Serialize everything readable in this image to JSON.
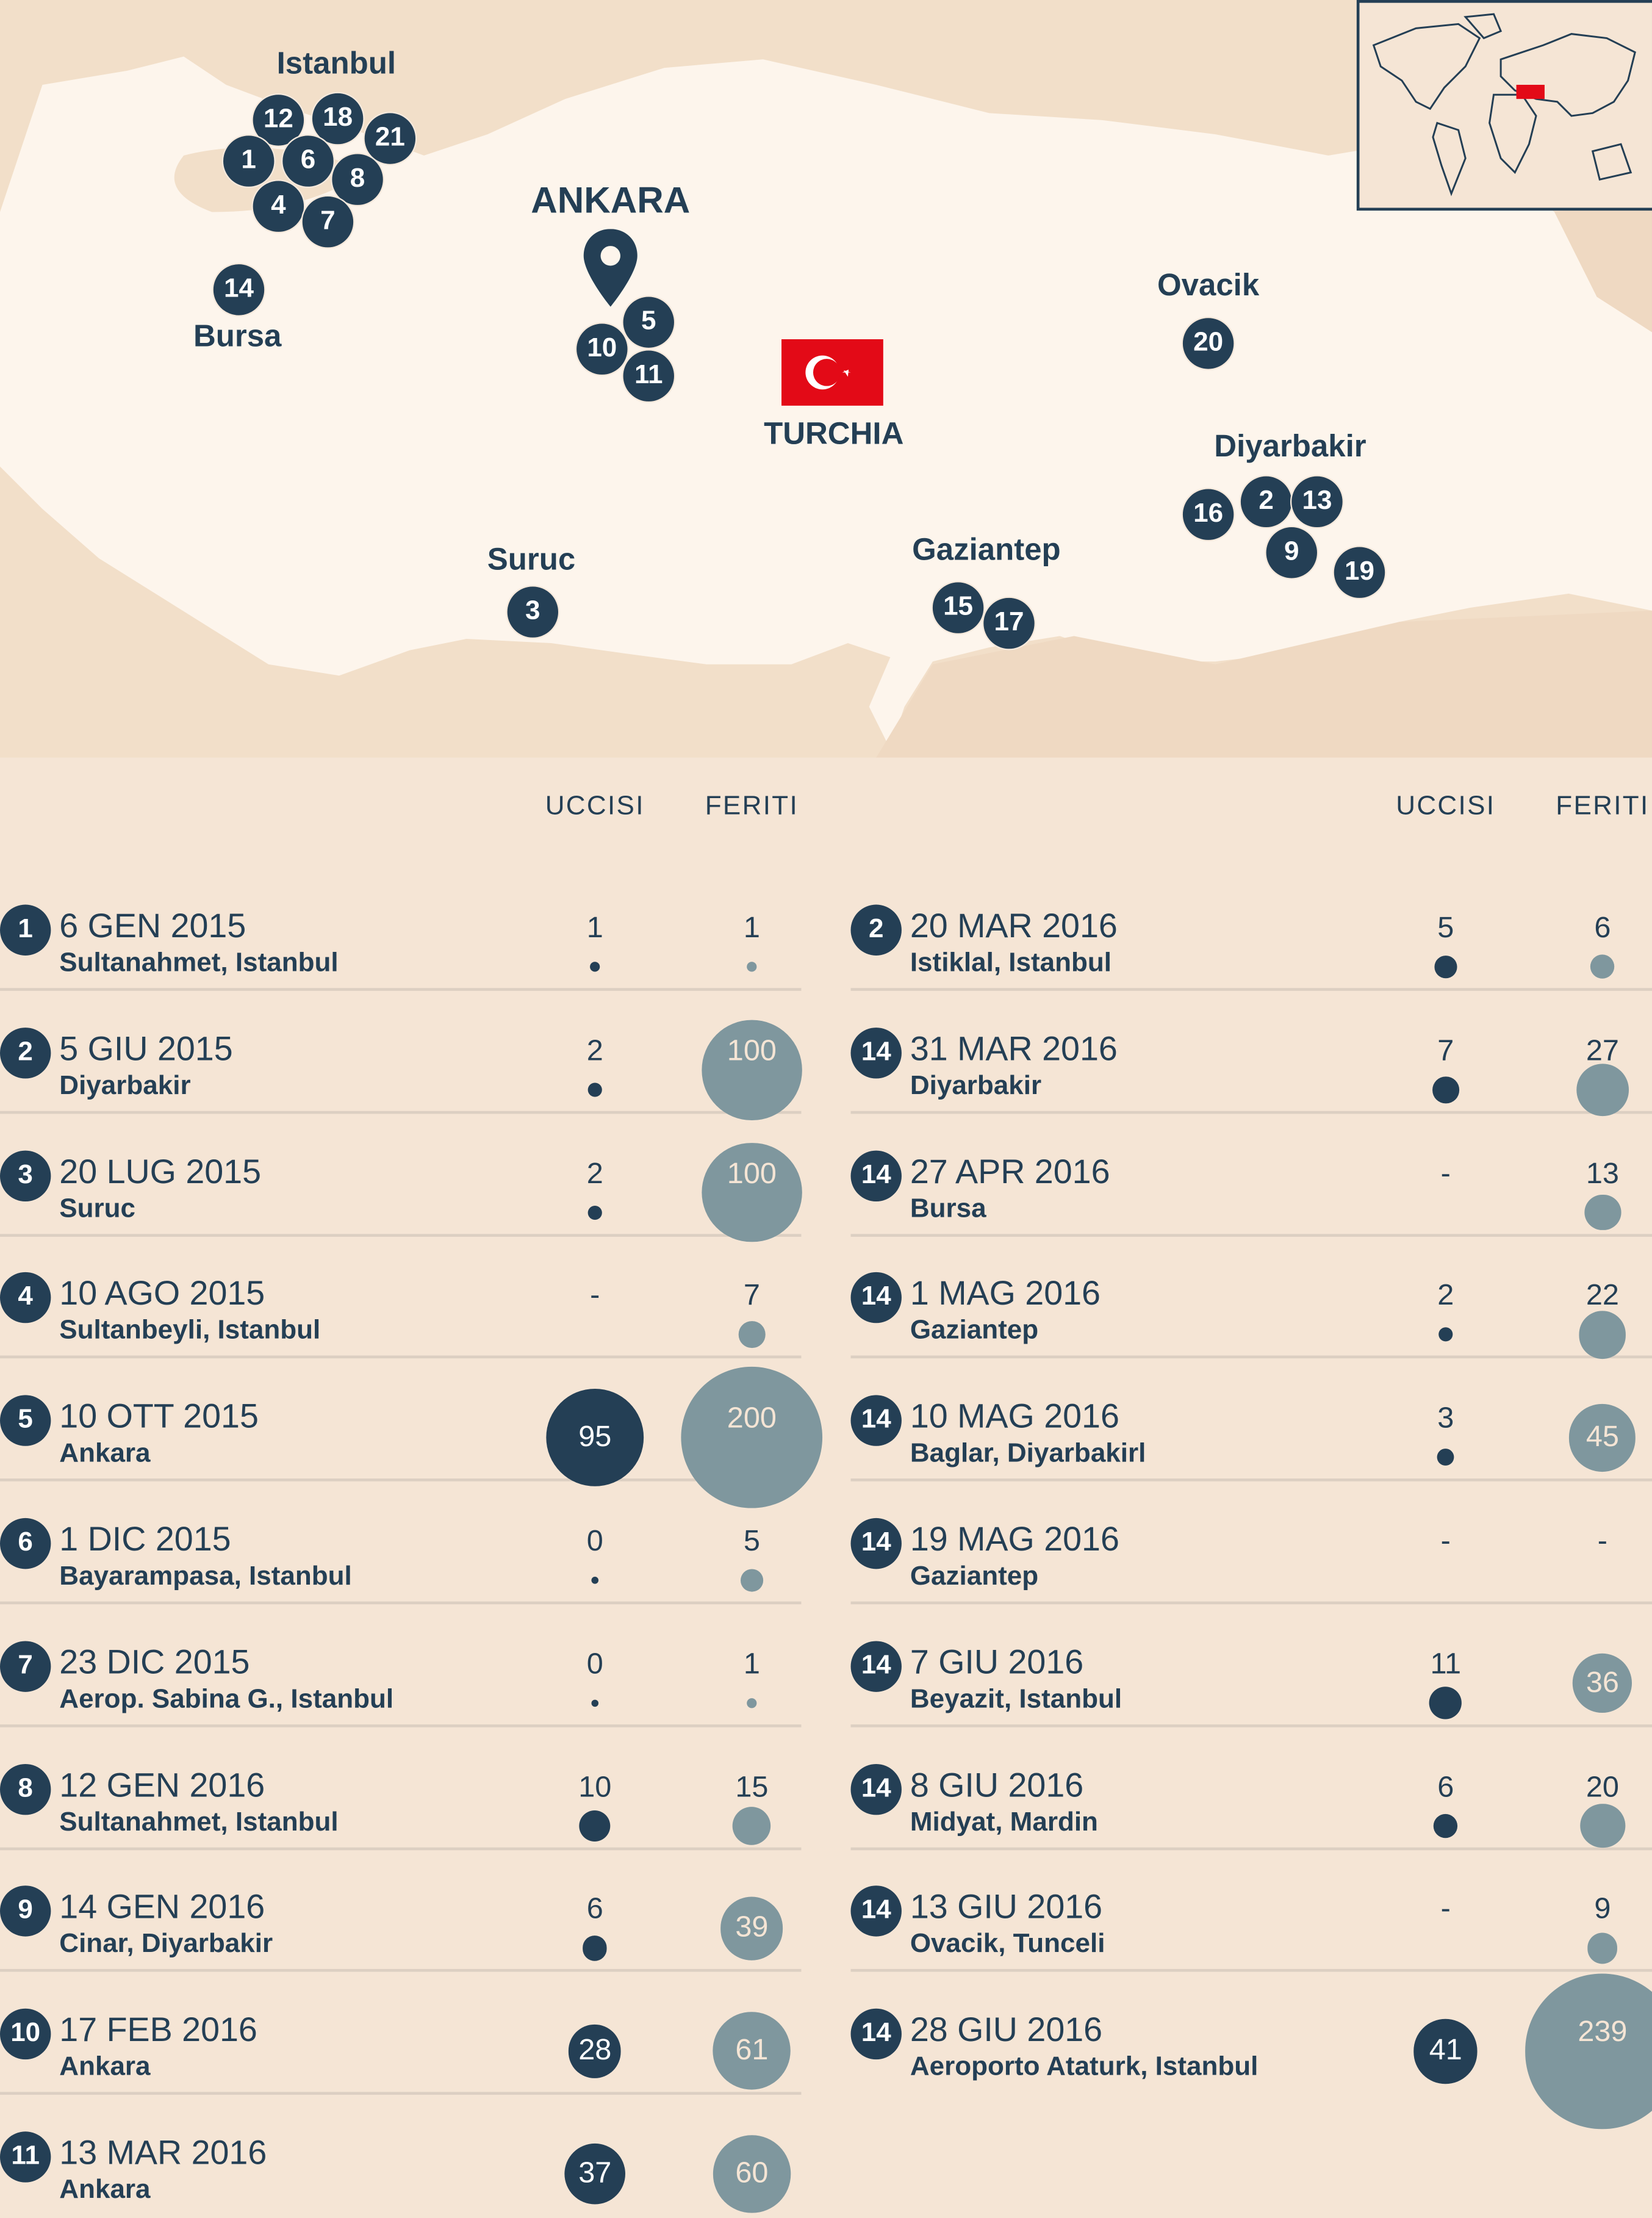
{
  "map": {
    "labels": {
      "istanbul": "Istanbul",
      "ankara": "ANKARA",
      "bursa": "Bursa",
      "ovacik": "Ovacik",
      "turchia": "TURCHIA",
      "diyarbakir": "Diyarbakir",
      "suruc": "Suruc",
      "gaziantep": "Gaziantep"
    },
    "markers": [
      "12",
      "18",
      "21",
      "1",
      "6",
      "8",
      "4",
      "7",
      "14",
      "5",
      "10",
      "11",
      "20",
      "16",
      "2",
      "13",
      "9",
      "19",
      "3",
      "15",
      "17"
    ],
    "colors": {
      "sea": "#f2dfc9",
      "turkey": "#fdf5ec",
      "marker": "#243f55",
      "flag": "#e30a17"
    }
  },
  "table": {
    "headers": {
      "killed": "UCCISI",
      "wounded": "FERITI"
    },
    "colors": {
      "killed": "#243f55",
      "wounded": "#7f979e"
    },
    "left": [
      {
        "badge": "1",
        "date": "6 GEN 2015",
        "place": "Sultanahmet, Istanbul",
        "killed": "1",
        "wounded": "1"
      },
      {
        "badge": "2",
        "date": "5 GIU 2015",
        "place": "Diyarbakir",
        "killed": "2",
        "wounded": "100"
      },
      {
        "badge": "3",
        "date": "20 LUG 2015",
        "place": "Suruc",
        "killed": "2",
        "wounded": "100"
      },
      {
        "badge": "4",
        "date": "10 AGO 2015",
        "place": "Sultanbeyli, Istanbul",
        "killed": "-",
        "wounded": "7"
      },
      {
        "badge": "5",
        "date": "10 OTT 2015",
        "place": "Ankara",
        "killed": "95",
        "wounded": "200"
      },
      {
        "badge": "6",
        "date": "1 DIC 2015",
        "place": "Bayarampasa, Istanbul",
        "killed": "0",
        "wounded": "5"
      },
      {
        "badge": "7",
        "date": "23 DIC 2015",
        "place": "Aerop. Sabina G., Istanbul",
        "killed": "0",
        "wounded": "1"
      },
      {
        "badge": "8",
        "date": "12 GEN 2016",
        "place": "Sultanahmet, Istanbul",
        "killed": "10",
        "wounded": "15"
      },
      {
        "badge": "9",
        "date": "14 GEN 2016",
        "place": "Cinar, Diyarbakir",
        "killed": "6",
        "wounded": "39"
      },
      {
        "badge": "10",
        "date": "17 FEB 2016",
        "place": "Ankara",
        "killed": "28",
        "wounded": "61"
      },
      {
        "badge": "11",
        "date": "13 MAR 2016",
        "place": "Ankara",
        "killed": "37",
        "wounded": "60"
      }
    ],
    "right": [
      {
        "badge": "2",
        "date": "20 MAR 2016",
        "place": "Istiklal, Istanbul",
        "killed": "5",
        "wounded": "6"
      },
      {
        "badge": "14",
        "date": "31 MAR 2016",
        "place": "Diyarbakir",
        "killed": "7",
        "wounded": "27"
      },
      {
        "badge": "14",
        "date": "27 APR 2016",
        "place": "Bursa",
        "killed": "-",
        "wounded": "13"
      },
      {
        "badge": "14",
        "date": "1 MAG 2016",
        "place": "Gaziantep",
        "killed": "2",
        "wounded": "22"
      },
      {
        "badge": "14",
        "date": "10 MAG 2016",
        "place": "Baglar, Diyarbakirl",
        "killed": "3",
        "wounded": "45"
      },
      {
        "badge": "14",
        "date": "19 MAG 2016",
        "place": "Gaziantep",
        "killed": "-",
        "wounded": "-"
      },
      {
        "badge": "14",
        "date": "7 GIU 2016",
        "place": "Beyazit, Istanbul",
        "killed": "11",
        "wounded": "36"
      },
      {
        "badge": "14",
        "date": "8 GIU 2016",
        "place": "Midyat, Mardin",
        "killed": "6",
        "wounded": "20"
      },
      {
        "badge": "14",
        "date": "13 GIU 2016",
        "place": "Ovacik, Tunceli",
        "killed": "-",
        "wounded": "9"
      },
      {
        "badge": "14",
        "date": "28 GIU 2016",
        "place": "Aeroporto Ataturk, Istanbul",
        "killed": "41",
        "wounded": "239"
      }
    ]
  }
}
